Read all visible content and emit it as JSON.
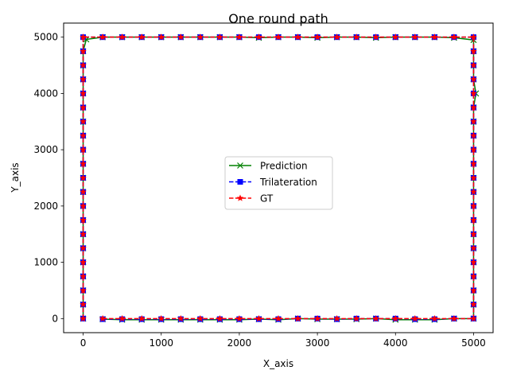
{
  "chart_data": {
    "type": "line",
    "title": "One round path",
    "xlabel": "X_axis",
    "ylabel": "Y_axis",
    "xlim": [
      -250,
      5250
    ],
    "ylim": [
      -250,
      5250
    ],
    "xticks": [
      0,
      1000,
      2000,
      3000,
      4000,
      5000
    ],
    "yticks": [
      0,
      1000,
      2000,
      3000,
      4000,
      5000
    ],
    "grid": false,
    "legend_position": "center",
    "series": [
      {
        "name": "Prediction",
        "color": "#008000",
        "linestyle": "solid",
        "marker": "x",
        "points": [
          [
            0,
            0
          ],
          [
            0,
            250
          ],
          [
            0,
            500
          ],
          [
            0,
            750
          ],
          [
            0,
            1000
          ],
          [
            0,
            1250
          ],
          [
            0,
            1500
          ],
          [
            0,
            1750
          ],
          [
            0,
            2000
          ],
          [
            0,
            2250
          ],
          [
            0,
            2500
          ],
          [
            0,
            2750
          ],
          [
            0,
            3000
          ],
          [
            0,
            3250
          ],
          [
            0,
            3500
          ],
          [
            0,
            3750
          ],
          [
            0,
            4000
          ],
          [
            0,
            4250
          ],
          [
            0,
            4500
          ],
          [
            0,
            4750
          ],
          [
            40,
            4960
          ],
          [
            250,
            5000
          ],
          [
            500,
            5000
          ],
          [
            750,
            5000
          ],
          [
            1000,
            5000
          ],
          [
            1250,
            5000
          ],
          [
            1500,
            5000
          ],
          [
            1750,
            5000
          ],
          [
            2000,
            5000
          ],
          [
            2250,
            4990
          ],
          [
            2500,
            5000
          ],
          [
            2750,
            5000
          ],
          [
            3000,
            4990
          ],
          [
            3250,
            5000
          ],
          [
            3500,
            5000
          ],
          [
            3750,
            4990
          ],
          [
            4000,
            5000
          ],
          [
            4250,
            5000
          ],
          [
            4500,
            5000
          ],
          [
            4750,
            4990
          ],
          [
            5000,
            4950
          ],
          [
            5000,
            4750
          ],
          [
            5000,
            4500
          ],
          [
            5000,
            4250
          ],
          [
            5030,
            4000
          ],
          [
            5000,
            3750
          ],
          [
            5000,
            3500
          ],
          [
            5000,
            3250
          ],
          [
            5000,
            3000
          ],
          [
            5000,
            2750
          ],
          [
            5000,
            2500
          ],
          [
            5000,
            2250
          ],
          [
            5000,
            2000
          ],
          [
            5000,
            1750
          ],
          [
            5000,
            1500
          ],
          [
            5000,
            1250
          ],
          [
            5000,
            1000
          ],
          [
            5000,
            750
          ],
          [
            5000,
            500
          ],
          [
            5000,
            250
          ],
          [
            5000,
            0
          ],
          [
            4750,
            0
          ],
          [
            4500,
            -20
          ],
          [
            4250,
            -20
          ],
          [
            4000,
            -20
          ],
          [
            3750,
            0
          ],
          [
            3500,
            -10
          ],
          [
            3250,
            -10
          ],
          [
            3000,
            -10
          ],
          [
            2750,
            0
          ],
          [
            2500,
            -20
          ],
          [
            2250,
            -10
          ],
          [
            2000,
            -20
          ],
          [
            1750,
            -20
          ],
          [
            1500,
            -20
          ],
          [
            1250,
            -20
          ],
          [
            1000,
            -20
          ],
          [
            750,
            -20
          ],
          [
            500,
            -20
          ],
          [
            250,
            -10
          ]
        ]
      },
      {
        "name": "Trilateration",
        "color": "#0000ff",
        "linestyle": "dashed",
        "marker": "s",
        "points": [
          [
            0,
            0
          ],
          [
            0,
            250
          ],
          [
            0,
            500
          ],
          [
            0,
            750
          ],
          [
            0,
            1000
          ],
          [
            0,
            1250
          ],
          [
            0,
            1500
          ],
          [
            0,
            1750
          ],
          [
            0,
            2000
          ],
          [
            0,
            2250
          ],
          [
            0,
            2500
          ],
          [
            0,
            2750
          ],
          [
            0,
            3000
          ],
          [
            0,
            3250
          ],
          [
            0,
            3500
          ],
          [
            0,
            3750
          ],
          [
            0,
            4000
          ],
          [
            0,
            4250
          ],
          [
            0,
            4500
          ],
          [
            0,
            4750
          ],
          [
            0,
            5000
          ],
          [
            250,
            5000
          ],
          [
            500,
            5000
          ],
          [
            750,
            5000
          ],
          [
            1000,
            5000
          ],
          [
            1250,
            5000
          ],
          [
            1500,
            5000
          ],
          [
            1750,
            5000
          ],
          [
            2000,
            5000
          ],
          [
            2250,
            5000
          ],
          [
            2500,
            5000
          ],
          [
            2750,
            5000
          ],
          [
            3000,
            5000
          ],
          [
            3250,
            5000
          ],
          [
            3500,
            5000
          ],
          [
            3750,
            5000
          ],
          [
            4000,
            5000
          ],
          [
            4250,
            5000
          ],
          [
            4500,
            5000
          ],
          [
            4750,
            5000
          ],
          [
            5000,
            5000
          ],
          [
            5000,
            4750
          ],
          [
            5000,
            4500
          ],
          [
            5000,
            4250
          ],
          [
            5000,
            4000
          ],
          [
            5000,
            3750
          ],
          [
            5000,
            3500
          ],
          [
            5000,
            3250
          ],
          [
            5000,
            3000
          ],
          [
            5000,
            2750
          ],
          [
            5000,
            2500
          ],
          [
            5000,
            2250
          ],
          [
            5000,
            2000
          ],
          [
            5000,
            1750
          ],
          [
            5000,
            1500
          ],
          [
            5000,
            1250
          ],
          [
            5000,
            1000
          ],
          [
            5000,
            750
          ],
          [
            5000,
            500
          ],
          [
            5000,
            250
          ],
          [
            5000,
            0
          ],
          [
            4750,
            0
          ],
          [
            4500,
            -10
          ],
          [
            4250,
            -10
          ],
          [
            4000,
            0
          ],
          [
            3750,
            0
          ],
          [
            3500,
            0
          ],
          [
            3250,
            -10
          ],
          [
            3000,
            0
          ],
          [
            2750,
            0
          ],
          [
            2500,
            -10
          ],
          [
            2250,
            -10
          ],
          [
            2000,
            -10
          ],
          [
            1750,
            -10
          ],
          [
            1500,
            -10
          ],
          [
            1250,
            -10
          ],
          [
            1000,
            -10
          ],
          [
            750,
            -10
          ],
          [
            500,
            -10
          ],
          [
            250,
            -10
          ]
        ]
      },
      {
        "name": "GT",
        "color": "#ff0000",
        "linestyle": "dashed",
        "marker": "*",
        "points": [
          [
            0,
            0
          ],
          [
            0,
            250
          ],
          [
            0,
            500
          ],
          [
            0,
            750
          ],
          [
            0,
            1000
          ],
          [
            0,
            1250
          ],
          [
            0,
            1500
          ],
          [
            0,
            1750
          ],
          [
            0,
            2000
          ],
          [
            0,
            2250
          ],
          [
            0,
            2500
          ],
          [
            0,
            2750
          ],
          [
            0,
            3000
          ],
          [
            0,
            3250
          ],
          [
            0,
            3500
          ],
          [
            0,
            3750
          ],
          [
            0,
            4000
          ],
          [
            0,
            4250
          ],
          [
            0,
            4500
          ],
          [
            0,
            4750
          ],
          [
            0,
            5000
          ],
          [
            250,
            5000
          ],
          [
            500,
            5000
          ],
          [
            750,
            5000
          ],
          [
            1000,
            5000
          ],
          [
            1250,
            5000
          ],
          [
            1500,
            5000
          ],
          [
            1750,
            5000
          ],
          [
            2000,
            5000
          ],
          [
            2250,
            5000
          ],
          [
            2500,
            5000
          ],
          [
            2750,
            5000
          ],
          [
            3000,
            5000
          ],
          [
            3250,
            5000
          ],
          [
            3500,
            5000
          ],
          [
            3750,
            5000
          ],
          [
            4000,
            5000
          ],
          [
            4250,
            5000
          ],
          [
            4500,
            5000
          ],
          [
            4750,
            5000
          ],
          [
            5000,
            5000
          ],
          [
            5000,
            4750
          ],
          [
            5000,
            4500
          ],
          [
            5000,
            4250
          ],
          [
            5000,
            4000
          ],
          [
            5000,
            3750
          ],
          [
            5000,
            3500
          ],
          [
            5000,
            3250
          ],
          [
            5000,
            3000
          ],
          [
            5000,
            2750
          ],
          [
            5000,
            2500
          ],
          [
            5000,
            2250
          ],
          [
            5000,
            2000
          ],
          [
            5000,
            1750
          ],
          [
            5000,
            1500
          ],
          [
            5000,
            1250
          ],
          [
            5000,
            1000
          ],
          [
            5000,
            750
          ],
          [
            5000,
            500
          ],
          [
            5000,
            250
          ],
          [
            5000,
            0
          ],
          [
            4750,
            0
          ],
          [
            4500,
            0
          ],
          [
            4250,
            0
          ],
          [
            4000,
            0
          ],
          [
            3750,
            0
          ],
          [
            3500,
            0
          ],
          [
            3250,
            0
          ],
          [
            3000,
            0
          ],
          [
            2750,
            0
          ],
          [
            2500,
            0
          ],
          [
            2250,
            0
          ],
          [
            2000,
            0
          ],
          [
            1750,
            0
          ],
          [
            1500,
            0
          ],
          [
            1250,
            0
          ],
          [
            1000,
            0
          ],
          [
            750,
            0
          ],
          [
            500,
            0
          ],
          [
            250,
            0
          ]
        ]
      }
    ]
  }
}
